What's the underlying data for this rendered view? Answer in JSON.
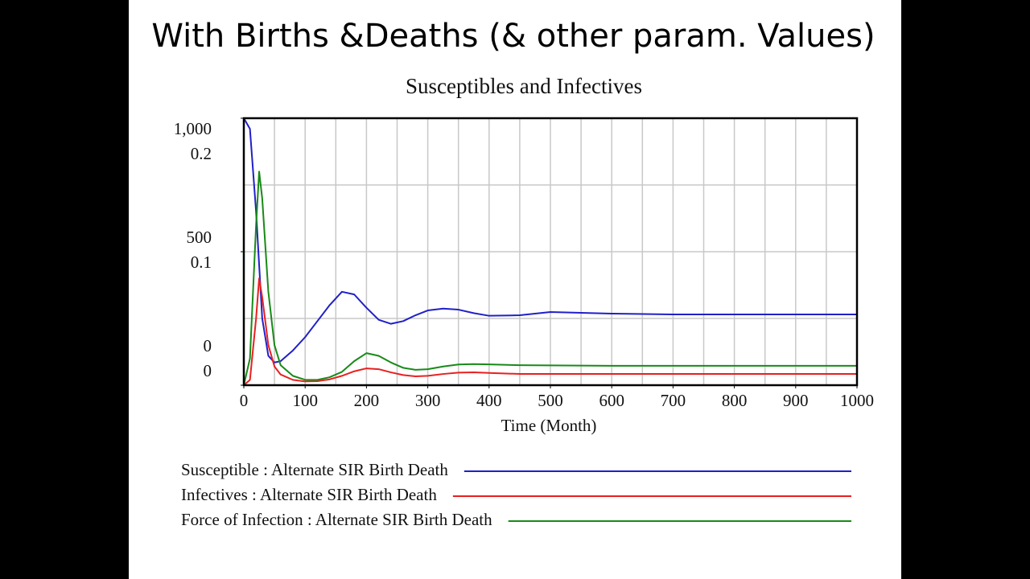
{
  "slide_title": "With Births &Deaths (& other param. Values)",
  "chart_data": {
    "type": "line",
    "title": "Susceptibles and Infectives",
    "x_label": "Time (Month)",
    "x": [
      0,
      10,
      20,
      25,
      30,
      40,
      50,
      60,
      80,
      100,
      120,
      140,
      160,
      180,
      200,
      220,
      240,
      260,
      280,
      300,
      325,
      350,
      375,
      400,
      450,
      500,
      600,
      700,
      800,
      900,
      1000
    ],
    "xlim": [
      0,
      1000
    ],
    "xticks": [
      0,
      100,
      200,
      300,
      400,
      500,
      600,
      700,
      800,
      900,
      1000
    ],
    "ylim": [
      0,
      1000
    ],
    "yticks": [
      0,
      500,
      {
        "value": 1000,
        "label": "1,000"
      }
    ],
    "y2lim": [
      0,
      0.2
    ],
    "y2ticks": [
      0,
      0.1,
      0.2
    ],
    "grid": true,
    "grid_divisions": {
      "x": 20,
      "y": 4
    },
    "series": [
      {
        "name": "Susceptible : Alternate SIR Birth Death",
        "color": "#2020c8",
        "values": [
          1000,
          960,
          650,
          450,
          250,
          110,
          85,
          90,
          130,
          180,
          240,
          300,
          350,
          340,
          290,
          245,
          230,
          240,
          262,
          280,
          287,
          283,
          270,
          260,
          262,
          274,
          268,
          265,
          265,
          265,
          265
        ]
      },
      {
        "name": "Infectives : Alternate SIR Birth Death",
        "color": "#e82020",
        "values": [
          0,
          20,
          250,
          400,
          330,
          150,
          70,
          40,
          20,
          14,
          15,
          22,
          35,
          52,
          63,
          60,
          48,
          38,
          33,
          35,
          42,
          47,
          48,
          46,
          42,
          42,
          42,
          42,
          42,
          42,
          42
        ]
      },
      {
        "name": "Force of Infection : Alternate SIR Birth Death",
        "color": "#188a18",
        "axis": "y2",
        "values": [
          0,
          0.02,
          0.12,
          0.16,
          0.14,
          0.07,
          0.03,
          0.015,
          0.007,
          0.004,
          0.004,
          0.006,
          0.01,
          0.018,
          0.024,
          0.022,
          0.017,
          0.013,
          0.0115,
          0.012,
          0.014,
          0.0155,
          0.0158,
          0.0156,
          0.015,
          0.0148,
          0.0145,
          0.0145,
          0.0145,
          0.0145,
          0.0145
        ]
      }
    ]
  }
}
